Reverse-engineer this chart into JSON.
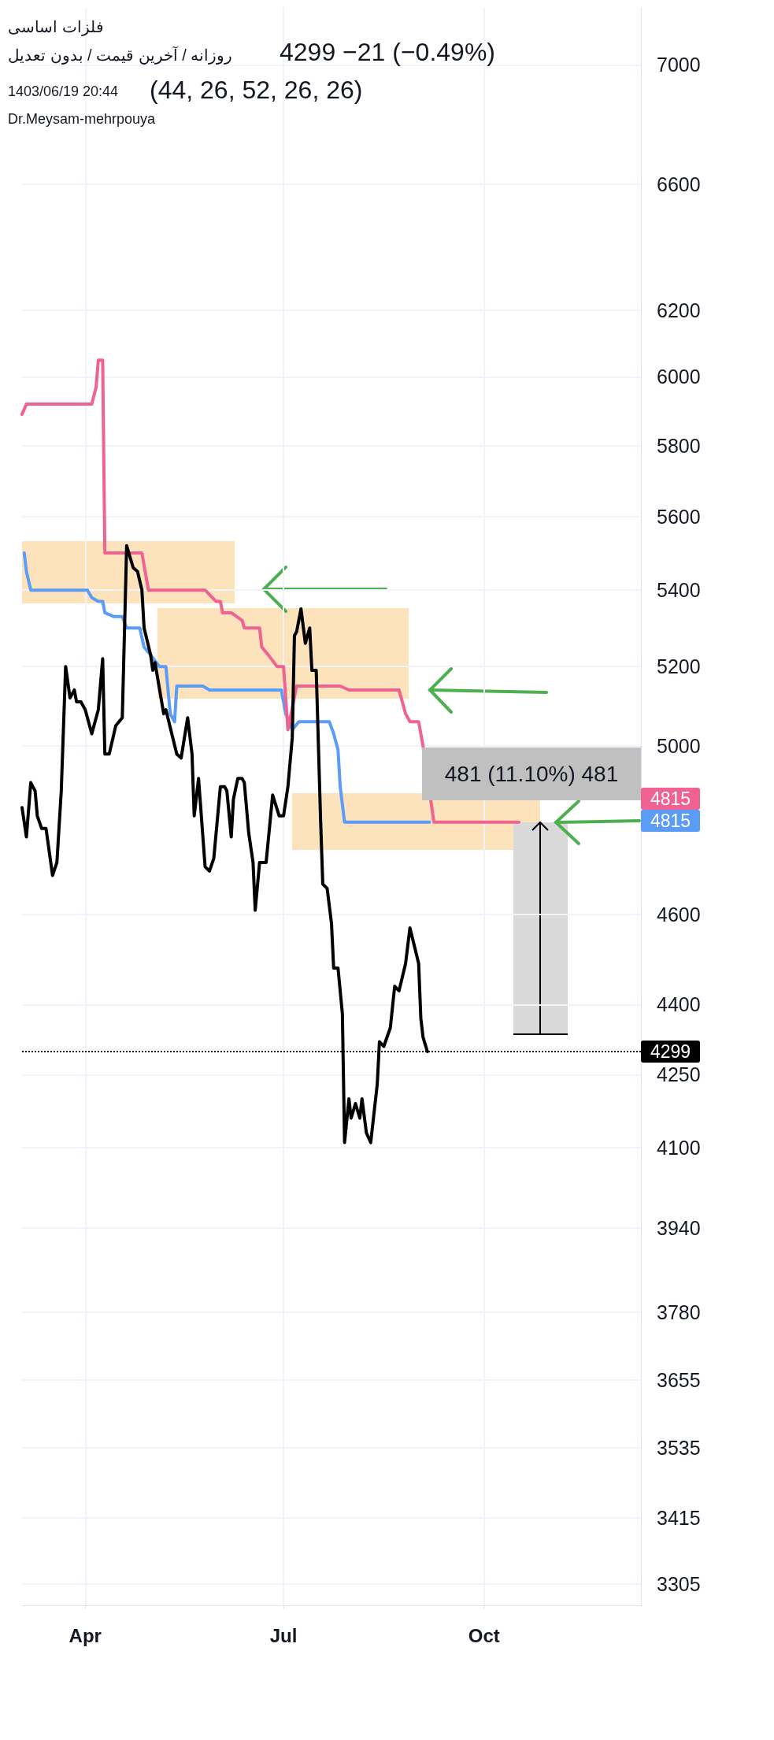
{
  "chart_data": {
    "type": "line",
    "title": "فلزات اساسی",
    "subtitle": "روزانه / آخرین قیمت / بدون تعدیل",
    "annotations": [
      "4299 −21 (−0.49%)",
      "(44, 26, 52, 26, 26)",
      "1403/06/19 20:44",
      "Dr.Meysam-mehrpouya",
      "481 (11.10%) 481",
      "4815",
      "4815"
    ],
    "series": [
      {
        "color": "#000000",
        "x": [
          "--03-03",
          "--03-05",
          "--03-07",
          "--03-09",
          "--03-10",
          "--03-12",
          "--03-14",
          "--03-17",
          "--03-19",
          "--03-21",
          "--03-23",
          "--03-25",
          "--03-27",
          "--03-28",
          "--03-30",
          "--04-01",
          "--04-04",
          "--04-07",
          "--04-09",
          "--04-10",
          "--04-12",
          "--04-15",
          "--04-18",
          "--04-20",
          "--04-23",
          "--04-25",
          "--04-27",
          "--04-28",
          "--05-01",
          "--05-02",
          "--05-03",
          "--05-07",
          "--05-08",
          "--05-13",
          "--05-15",
          "--05-18",
          "--05-20",
          "--05-21",
          "--05-23",
          "--05-26",
          "--05-28",
          "--05-30",
          "--06-02",
          "--06-04",
          "--06-05",
          "--06-07",
          "--06-08",
          "--06-10",
          "--06-12",
          "--06-13",
          "--06-15",
          "--06-17",
          "--06-18",
          "--06-20",
          "--06-23",
          "--06-26",
          "--06-29",
          "--07-01",
          "--07-03",
          "--07-05",
          "--07-06",
          "--07-07",
          "--07-09",
          "--07-11",
          "--07-13",
          "--07-14",
          "--07-16",
          "--07-18",
          "--07-19",
          "--07-21",
          "--07-23",
          "--07-24",
          "--07-26",
          "--07-28",
          "--07-29",
          "--07-31",
          "--08-01",
          "--08-03",
          "--08-05",
          "--08-06",
          "--08-08",
          "--08-10",
          "--08-13",
          "--08-14",
          "--08-16",
          "--08-19",
          "--08-21",
          "--08-23",
          "--08-26",
          "--08-28",
          "--08-30",
          "--09-01",
          "--09-02",
          "--09-03",
          "--09-05"
        ],
        "values": [
          4850,
          4780,
          4910,
          4890,
          4830,
          4800,
          4800,
          4690,
          4720,
          4890,
          5200,
          5120,
          5140,
          5110,
          5110,
          5090,
          5030,
          5090,
          5220,
          4980,
          4980,
          5050,
          5070,
          5520,
          5460,
          5450,
          5400,
          5300,
          5230,
          5190,
          5210,
          5080,
          5090,
          4980,
          4970,
          5070,
          4980,
          4830,
          4920,
          4710,
          4700,
          4730,
          4900,
          4900,
          4890,
          4780,
          4870,
          4920,
          4920,
          4910,
          4790,
          4720,
          4610,
          4720,
          4720,
          4880,
          4830,
          4830,
          4900,
          5020,
          5280,
          5290,
          5350,
          5260,
          5300,
          5190,
          5190,
          4820,
          4670,
          4660,
          4580,
          4480,
          4480,
          4380,
          4110,
          4200,
          4160,
          4190,
          4160,
          4200,
          4130,
          4110,
          4230,
          4320,
          4310,
          4350,
          4440,
          4430,
          4490,
          4570,
          4530,
          4490,
          4370,
          4330,
          4299
        ]
      },
      {
        "color": "#f06292",
        "x": [
          "--03-03",
          "--03-05",
          "--04-04",
          "--04-06",
          "--04-07",
          "--04-09",
          "--04-10",
          "--04-27",
          "--04-30",
          "--05-26",
          "--05-31",
          "--06-02",
          "--06-03",
          "--06-07",
          "--06-12",
          "--06-13",
          "--06-20",
          "--06-21",
          "--06-24",
          "--06-28",
          "--07-01",
          "--07-03",
          "--07-07",
          "--07-27",
          "--07-31",
          "--08-23",
          "--08-26",
          "--08-28",
          "--09-01",
          "--09-03",
          "--09-08",
          "--10-17"
        ],
        "values": [
          5890,
          5920,
          5920,
          5970,
          6050,
          6050,
          5500,
          5500,
          5400,
          5400,
          5370,
          5370,
          5340,
          5340,
          5320,
          5300,
          5300,
          5250,
          5230,
          5200,
          5200,
          5040,
          5150,
          5150,
          5140,
          5140,
          5080,
          5060,
          5060,
          5000,
          4815,
          4815
        ]
      },
      {
        "color": "#5b9cf6",
        "x": [
          "--03-04",
          "--03-05",
          "--03-07",
          "--04-02",
          "--04-04",
          "--04-07",
          "--04-09",
          "--04-10",
          "--04-14",
          "--04-18",
          "--04-20",
          "--04-23",
          "--04-26",
          "--04-28",
          "--05-01",
          "--05-05",
          "--05-08",
          "--05-10",
          "--05-12",
          "--05-13",
          "--05-25",
          "--05-28",
          "--06-17",
          "--06-20",
          "--06-30",
          "--07-02",
          "--07-05",
          "--07-08",
          "--07-22",
          "--07-24",
          "--07-26",
          "--07-27",
          "--07-29",
          "--09-06"
        ],
        "values": [
          5500,
          5450,
          5400,
          5400,
          5380,
          5370,
          5370,
          5340,
          5330,
          5330,
          5300,
          5300,
          5300,
          5250,
          5230,
          5200,
          5200,
          5080,
          5060,
          5150,
          5150,
          5140,
          5140,
          5140,
          5140,
          5080,
          5040,
          5060,
          5060,
          5030,
          4990,
          4900,
          4815,
          4815
        ]
      }
    ],
    "xlim": [
      "--03-03",
      "--12-12"
    ],
    "xticks": [
      {
        "value": "--04-01",
        "label": "Apr"
      },
      {
        "value": "--07-01",
        "label": "Jul"
      },
      {
        "value": "--10-01",
        "label": "Oct"
      }
    ],
    "ylim": [
      3270,
      7200
    ],
    "yticks": [
      3305,
      3415,
      3535,
      3655,
      3780,
      3940,
      4100,
      4250,
      4400,
      4600,
      5000,
      5200,
      5400,
      5600,
      5800,
      6000,
      6200,
      6600,
      7000
    ],
    "log": true,
    "grid": true,
    "marker": "none",
    "line_style": "solid",
    "ref_lines": [
      {
        "axis": "y",
        "value": 4299,
        "label": "4299",
        "color": "#000000",
        "line_style": "dotted"
      }
    ]
  }
}
